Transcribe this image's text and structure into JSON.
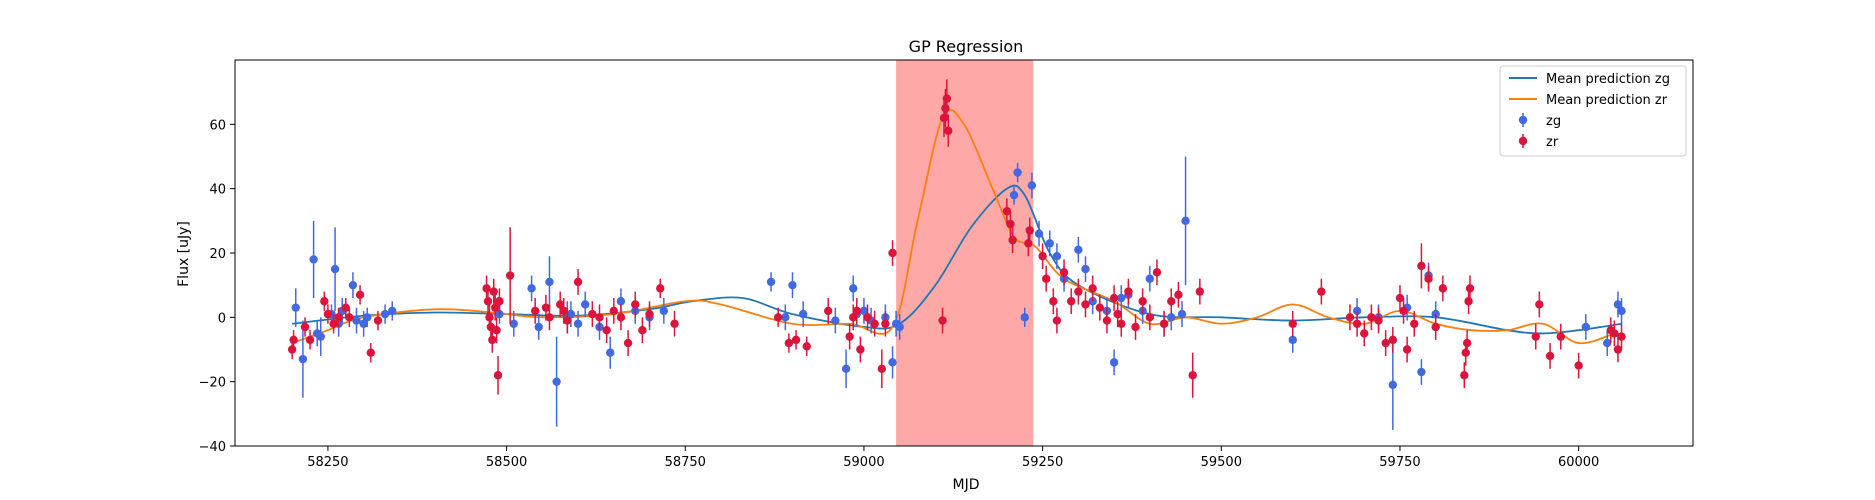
{
  "chart_data": {
    "type": "scatter",
    "title": "GP Regression",
    "xlabel": "MJD",
    "ylabel": "Flux [uJy]",
    "xlim": [
      58120,
      60160
    ],
    "ylim": [
      -40,
      80
    ],
    "xticks": [
      58250,
      58500,
      58750,
      59000,
      59250,
      59500,
      59750,
      60000
    ],
    "yticks": [
      -40,
      -20,
      0,
      20,
      40,
      60
    ],
    "grid": false,
    "legend_position": "top-right",
    "highlight_region": {
      "x0": 59045,
      "x1": 59237,
      "color": "#ff9999"
    },
    "colors": {
      "zg": "#4169e1",
      "zr": "#dc143c",
      "mean_zg": "#1f77b4",
      "mean_zr": "#ff7f0e"
    },
    "legend": [
      "Mean prediction zg",
      "Mean prediction zr",
      "zg",
      "zr"
    ],
    "series": [
      {
        "name": "Mean prediction zg",
        "kind": "line",
        "x": [
          58200,
          58300,
          58400,
          58500,
          58600,
          58700,
          58760,
          58830,
          58900,
          59000,
          59050,
          59100,
          59150,
          59200,
          59225,
          59260,
          59300,
          59400,
          59500,
          59600,
          59700,
          59800,
          59900,
          59950,
          60000,
          60060
        ],
        "y": [
          -2,
          0.5,
          1.5,
          1,
          0.5,
          2.5,
          5,
          6,
          1,
          -3,
          -2,
          10,
          28,
          40,
          38,
          20,
          10,
          1,
          0,
          -1,
          0,
          0,
          -4,
          -5,
          -4,
          -2
        ]
      },
      {
        "name": "Mean prediction zr",
        "kind": "line",
        "x": [
          58200,
          58250,
          58300,
          58400,
          58480,
          58550,
          58650,
          58750,
          58800,
          58900,
          58980,
          59040,
          59075,
          59110,
          59140,
          59180,
          59210,
          59240,
          59280,
          59350,
          59400,
          59450,
          59500,
          59550,
          59600,
          59650,
          59700,
          59750,
          59800,
          59850,
          59900,
          59950,
          60000,
          60050
        ],
        "y": [
          -8,
          -4,
          0,
          2.5,
          1.5,
          0,
          1,
          5,
          4,
          -2,
          -2,
          -3,
          30,
          62,
          60,
          40,
          25,
          22,
          12,
          5,
          -2,
          0,
          -2,
          0,
          4,
          0,
          -2,
          2,
          -2,
          -4,
          -4,
          -2,
          -8,
          -5
        ]
      },
      {
        "name": "zg",
        "kind": "errorbar",
        "x": [
          58205,
          58215,
          58230,
          58235,
          58240,
          58255,
          58260,
          58265,
          58270,
          58285,
          58290,
          58300,
          58305,
          58330,
          58340,
          58490,
          58510,
          58535,
          58545,
          58560,
          58570,
          58585,
          58590,
          58600,
          58610,
          58630,
          58645,
          58660,
          58680,
          58700,
          58720,
          58870,
          58890,
          58900,
          58915,
          58960,
          58975,
          58985,
          58990,
          59000,
          59010,
          59030,
          59040,
          59045,
          59050,
          59210,
          59215,
          59225,
          59235,
          59245,
          59260,
          59270,
          59280,
          59300,
          59310,
          59320,
          59340,
          59350,
          59360,
          59370,
          59390,
          59400,
          59420,
          59430,
          59445,
          59450,
          59600,
          59690,
          59720,
          59740,
          59760,
          59780,
          59790,
          59800,
          60010,
          60040,
          60055,
          60060
        ],
        "y": [
          3,
          -13,
          18,
          -5,
          -6,
          1,
          15,
          -2,
          2,
          10,
          -1,
          -2,
          0,
          1,
          2,
          1,
          -2,
          9,
          -3,
          11,
          -20,
          0,
          1,
          -2,
          4,
          -3,
          -11,
          5,
          2,
          0,
          2,
          11,
          0,
          10,
          1,
          -1,
          -16,
          9,
          1,
          2,
          -1,
          0,
          -14,
          -2,
          -3,
          38,
          45,
          0,
          41,
          26,
          23,
          19,
          12,
          21,
          15,
          5,
          2,
          -14,
          6,
          7,
          2,
          12,
          -2,
          0,
          1,
          30,
          -7,
          2,
          0,
          -21,
          3,
          -17,
          13,
          1,
          -3,
          -8,
          4,
          2
        ],
        "yerr": [
          6,
          12,
          12,
          4,
          6,
          3,
          13,
          4,
          4,
          4,
          4,
          4,
          3,
          3,
          3,
          3,
          4,
          4,
          4,
          8,
          14,
          5,
          4,
          4,
          4,
          4,
          5,
          4,
          4,
          4,
          4,
          3,
          4,
          4,
          4,
          4,
          6,
          4,
          4,
          4,
          4,
          4,
          5,
          4,
          4,
          3,
          3,
          3,
          4,
          4,
          4,
          4,
          4,
          4,
          4,
          4,
          4,
          4,
          4,
          4,
          4,
          4,
          4,
          4,
          4,
          20,
          4,
          4,
          4,
          14,
          4,
          4,
          4,
          4,
          4,
          4,
          4,
          4
        ]
      },
      {
        "name": "zr",
        "kind": "errorbar",
        "x": [
          58200,
          58202,
          58218,
          58225,
          58245,
          58250,
          58258,
          58265,
          58275,
          58280,
          58295,
          58310,
          58320,
          58472,
          58474,
          58476,
          58478,
          58480,
          58482,
          58484,
          58486,
          58488,
          58490,
          58505,
          58540,
          58555,
          58560,
          58575,
          58580,
          58585,
          58600,
          58620,
          58630,
          58640,
          58650,
          58660,
          58670,
          58680,
          58690,
          58700,
          58715,
          58735,
          58880,
          58895,
          58905,
          58920,
          58950,
          58980,
          58985,
          58990,
          58995,
          59005,
          59015,
          59025,
          59030,
          59040,
          59110,
          59112,
          59114,
          59116,
          59118,
          59200,
          59205,
          59208,
          59230,
          59232,
          59250,
          59255,
          59265,
          59270,
          59280,
          59290,
          59300,
          59310,
          59320,
          59330,
          59340,
          59350,
          59355,
          59360,
          59370,
          59380,
          59390,
          59400,
          59410,
          59420,
          59430,
          59440,
          59460,
          59470,
          59600,
          59640,
          59680,
          59690,
          59700,
          59710,
          59720,
          59730,
          59740,
          59750,
          59755,
          59760,
          59770,
          59780,
          59790,
          59800,
          59810,
          59840,
          59842,
          59844,
          59846,
          59848,
          59940,
          59945,
          59960,
          59975,
          60000,
          60045,
          60050,
          60055,
          60060
        ],
        "y": [
          -10,
          -7,
          -3,
          -7,
          5,
          1,
          -2,
          0,
          3,
          0,
          7,
          -11,
          -1,
          9,
          5,
          0,
          -3,
          -7,
          8,
          3,
          -4,
          -18,
          5,
          13,
          2,
          3,
          0,
          4,
          2,
          -1,
          11,
          1,
          0,
          -4,
          2,
          0,
          -8,
          4,
          -4,
          1,
          9,
          -2,
          0,
          -8,
          -7,
          -9,
          2,
          -6,
          0,
          2,
          -10,
          0,
          -2,
          -16,
          -2,
          20,
          -1,
          62,
          65,
          68,
          58,
          33,
          29,
          24,
          23,
          27,
          19,
          12,
          5,
          -1,
          14,
          5,
          8,
          4,
          9,
          3,
          -1,
          6,
          1,
          -2,
          8,
          -3,
          5,
          0,
          14,
          -2,
          5,
          7,
          -18,
          8,
          -2,
          8,
          0,
          -2,
          -5,
          0,
          -1,
          -8,
          -7,
          6,
          2,
          -10,
          -2,
          16,
          12,
          -3,
          9,
          -18,
          -11,
          -8,
          5,
          9,
          -6,
          4,
          -12,
          -6,
          -15,
          -4,
          -5,
          -10,
          -6
        ],
        "yerr": [
          3,
          3,
          3,
          3,
          3,
          3,
          3,
          3,
          3,
          3,
          3,
          3,
          3,
          4,
          4,
          4,
          4,
          4,
          4,
          4,
          4,
          6,
          4,
          15,
          4,
          4,
          4,
          4,
          4,
          4,
          4,
          4,
          4,
          4,
          4,
          4,
          4,
          4,
          4,
          4,
          3,
          4,
          3,
          3,
          3,
          3,
          4,
          4,
          4,
          4,
          4,
          4,
          4,
          6,
          4,
          4,
          4,
          6,
          6,
          6,
          5,
          4,
          4,
          4,
          4,
          4,
          4,
          4,
          4,
          4,
          4,
          4,
          4,
          4,
          4,
          4,
          4,
          4,
          4,
          4,
          4,
          4,
          4,
          4,
          4,
          4,
          4,
          4,
          7,
          4,
          4,
          4,
          4,
          4,
          4,
          4,
          4,
          4,
          4,
          4,
          4,
          4,
          4,
          7,
          4,
          4,
          4,
          4,
          4,
          4,
          4,
          4,
          4,
          4,
          4,
          4,
          4,
          4,
          4,
          4,
          4
        ]
      }
    ]
  }
}
